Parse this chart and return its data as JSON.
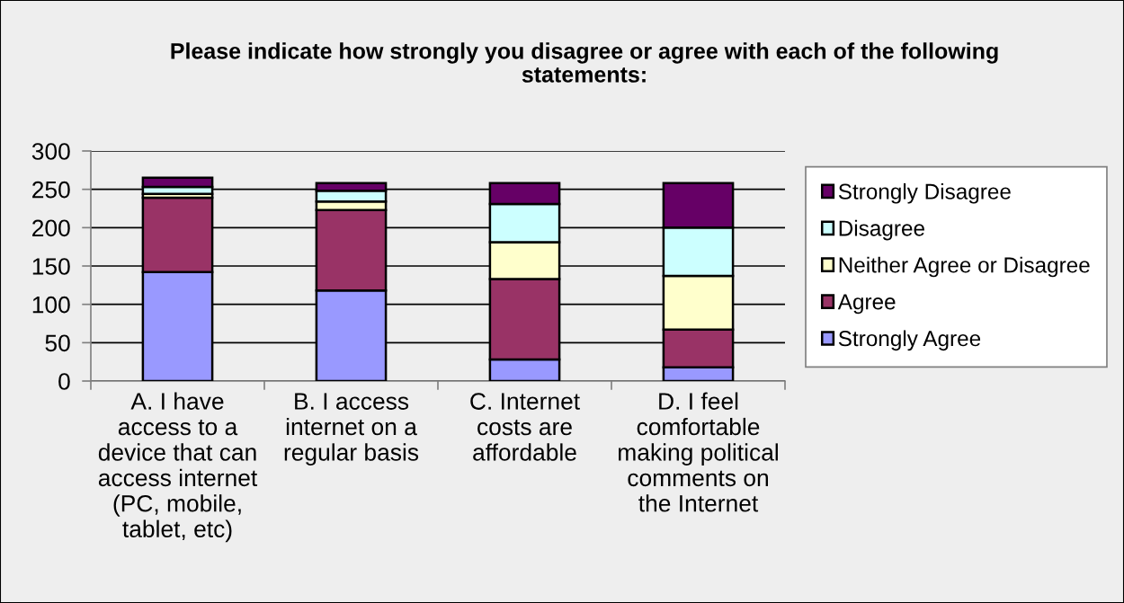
{
  "chart_data": {
    "type": "bar",
    "title": "Please indicate how strongly you disagree or agree with each of the following statements:",
    "categories": [
      "A. I have access to a device that can access internet (PC, mobile, tablet, etc)",
      "B. I access internet on a regular basis",
      "C. Internet costs are affordable",
      "D. I feel comfortable making political comments on the Internet"
    ],
    "stacked": true,
    "series": [
      {
        "name": "Strongly Agree",
        "color": "#9999ff",
        "values": [
          142,
          118,
          28,
          18
        ]
      },
      {
        "name": "Agree",
        "color": "#993366",
        "values": [
          97,
          105,
          105,
          49
        ]
      },
      {
        "name": "Neither Agree or Disagree",
        "color": "#ffffcc",
        "values": [
          5,
          11,
          48,
          70
        ]
      },
      {
        "name": "Disagree",
        "color": "#ccffff",
        "values": [
          9,
          14,
          50,
          63
        ]
      },
      {
        "name": "Strongly Disagree",
        "color": "#660066",
        "values": [
          12,
          10,
          27,
          58
        ]
      }
    ],
    "ylim": [
      0,
      300
    ],
    "yticks": [
      0,
      50,
      100,
      150,
      200,
      250,
      300
    ],
    "grid": "y",
    "legend": "right"
  }
}
